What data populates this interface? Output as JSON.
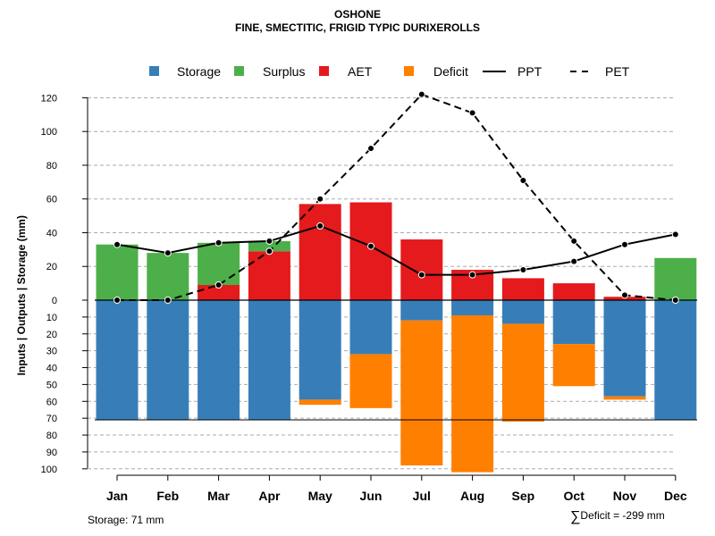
{
  "title": "OSHONE",
  "subtitle": "FINE, SMECTITIC, FRIGID TYPIC DURIXEROLLS",
  "footer": {
    "storage_note": "Storage: 71 mm",
    "deficit_sigma": "∑",
    "deficit_note": "Deficit = -299 mm"
  },
  "colors": {
    "storage": "#377EB8",
    "surplus": "#4DAF4A",
    "aet": "#E41A1C",
    "deficit": "#FF7F00",
    "line": "#000000",
    "grid": "#AAAAAA"
  },
  "chart_data": {
    "type": "bar",
    "title": "OSHONE",
    "subtitle": "FINE, SMECTITIC, FRIGID TYPIC DURIXEROLLS",
    "ylabel": "Inputs | Outputs | Storage    (mm)",
    "xlabel": "",
    "ylim": [
      -100,
      120
    ],
    "y_ticks_upper": [
      0,
      20,
      40,
      60,
      80,
      100,
      120
    ],
    "y_tick_labels_upper": [
      "0",
      "20",
      "40",
      "60",
      "80",
      "100",
      "120"
    ],
    "y_ticks_lower": [
      10,
      20,
      30,
      40,
      50,
      60,
      70,
      80,
      90,
      100
    ],
    "y_tick_labels_lower": [
      "10",
      "20",
      "30",
      "40",
      "50",
      "60",
      "70",
      "80",
      "90",
      "100"
    ],
    "grid": true,
    "legend_position": "top",
    "legend": [
      {
        "key": "storage",
        "label": "Storage",
        "kind": "box"
      },
      {
        "key": "surplus",
        "label": "Surplus",
        "kind": "box"
      },
      {
        "key": "aet",
        "label": "AET",
        "kind": "box"
      },
      {
        "key": "deficit",
        "label": "Deficit",
        "kind": "box"
      },
      {
        "key": "ppt",
        "label": "PPT",
        "kind": "solid"
      },
      {
        "key": "pet",
        "label": "PET",
        "kind": "dashed"
      }
    ],
    "categories": [
      "Jan",
      "Feb",
      "Mar",
      "Apr",
      "May",
      "Jun",
      "Jul",
      "Aug",
      "Sep",
      "Oct",
      "Nov",
      "Dec"
    ],
    "series": [
      {
        "name": "AET",
        "values": [
          0,
          0,
          9,
          29,
          57,
          58,
          36,
          18,
          13,
          10,
          2,
          0
        ]
      },
      {
        "name": "Surplus",
        "values": [
          33,
          28,
          25,
          6,
          0,
          0,
          0,
          0,
          0,
          0,
          0,
          25
        ]
      },
      {
        "name": "Storage",
        "values": [
          71,
          71,
          71,
          71,
          59,
          32,
          12,
          9,
          14,
          26,
          57,
          71
        ]
      },
      {
        "name": "Deficit",
        "values": [
          0,
          0,
          0,
          0,
          3,
          32,
          86,
          93,
          58,
          25,
          2,
          0
        ]
      },
      {
        "name": "PPT",
        "values": [
          33,
          28,
          34,
          35,
          44,
          32,
          15,
          15,
          18,
          23,
          33,
          39
        ]
      },
      {
        "name": "PET",
        "values": [
          0,
          0,
          9,
          29,
          60,
          90,
          122,
          111,
          71,
          35,
          3,
          0
        ]
      }
    ],
    "storage_capacity": 71
  }
}
